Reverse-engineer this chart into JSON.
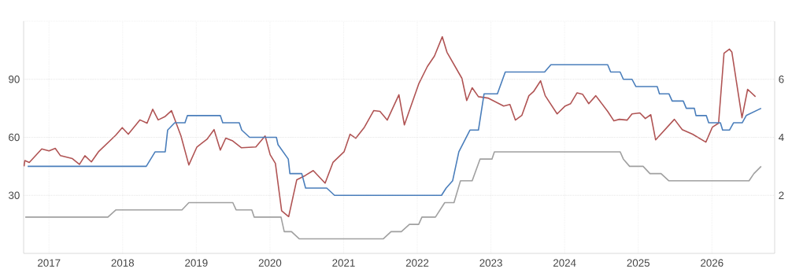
{
  "chart_data": {
    "type": "line",
    "xlim": [
      "2016-08-28",
      "2026-11-08"
    ],
    "xticks": [
      "2017",
      "2018",
      "2019",
      "2020",
      "2021",
      "2022",
      "2023",
      "2024",
      "2025",
      "2026"
    ],
    "ylim": [
      0,
      120
    ],
    "yticks": [
      30,
      60,
      90,
      {
        "value": 120,
        "label": null
      }
    ],
    "y2lim": [
      0,
      8
    ],
    "y2ticks": [
      2,
      4,
      6
    ],
    "grid": true,
    "line_style": "solid",
    "series": [
      {
        "color": "#b05454",
        "x": [
          "2016-08-30",
          "2016-09-03",
          "2016-09-25",
          "2016-11-26",
          "2017-01-01",
          "2017-02-01",
          "2017-02-27",
          "2017-04-27",
          "2017-06-01",
          "2017-06-28",
          "2017-07-30",
          "2017-09-03",
          "2017-11-27",
          "2017-12-30",
          "2018-01-29",
          "2018-03-28",
          "2018-05-02",
          "2018-05-30",
          "2018-06-26",
          "2018-07-31",
          "2018-08-31",
          "2018-10-17",
          "2018-11-25",
          "2019-01-04",
          "2019-02-23",
          "2019-03-30",
          "2019-04-30",
          "2019-05-27",
          "2019-06-28",
          "2019-08-13",
          "2019-10-23",
          "2019-12-08",
          "2020-01-02",
          "2020-01-28",
          "2020-02-28",
          "2020-04-03",
          "2020-05-13",
          "2020-06-25",
          "2020-08-03",
          "2020-10-01",
          "2020-11-09",
          "2021-01-03",
          "2021-02-02",
          "2021-03-02",
          "2021-04-14",
          "2021-05-30",
          "2021-06-30",
          "2021-08-05",
          "2021-10-02",
          "2021-10-29",
          "2022-01-08",
          "2022-02-20",
          "2022-03-27",
          "2022-05-05",
          "2022-05-28",
          "2022-08-10",
          "2022-09-03",
          "2022-09-30",
          "2022-10-31",
          "2022-12-17",
          "2023-03-05",
          "2023-04-05",
          "2023-05-02",
          "2023-06-03",
          "2023-07-08",
          "2023-07-31",
          "2023-09-04",
          "2023-09-27",
          "2023-11-25",
          "2024-01-04",
          "2024-01-31",
          "2024-03-03",
          "2024-03-30",
          "2024-04-30",
          "2024-06-04",
          "2024-08-02",
          "2024-09-02",
          "2024-09-29",
          "2024-11-07",
          "2024-12-01",
          "2025-01-09",
          "2025-02-05",
          "2025-03-04",
          "2025-03-28",
          "2025-06-29",
          "2025-08-07",
          "2025-09-27",
          "2025-12-02",
          "2026-01-03",
          "2026-02-03",
          "2026-03-02",
          "2026-03-29",
          "2026-04-10",
          "2026-05-30",
          "2026-06-27",
          "2026-08-05"
        ],
        "values": [
          45,
          48,
          47,
          54,
          53,
          54.3,
          50.5,
          49,
          46,
          50.5,
          47.3,
          52.5,
          61,
          65,
          61.6,
          69,
          67.3,
          74.5,
          69,
          70.8,
          73.8,
          60.7,
          45.7,
          55,
          59,
          64,
          53.4,
          59.6,
          58.3,
          54.6,
          55,
          60.7,
          51,
          46.5,
          22,
          19,
          38,
          40.3,
          42.8,
          36.3,
          47,
          52.5,
          61.6,
          59.5,
          65.2,
          73.8,
          73.4,
          68.9,
          82,
          66.4,
          87.6,
          96.6,
          102,
          112,
          104,
          90.5,
          79,
          85.6,
          81,
          80.3,
          76.2,
          77,
          68.9,
          71.3,
          81.5,
          83.6,
          89.2,
          81.5,
          72.1,
          76.2,
          77.4,
          83,
          82.3,
          77.4,
          81.5,
          73.4,
          68.5,
          69.3,
          68.9,
          72.1,
          72.6,
          69.7,
          71.7,
          58.7,
          69.3,
          64,
          61.6,
          57.5,
          65.2,
          67.3,
          103.5,
          105.6,
          104,
          70.1,
          84.8,
          81
        ]
      },
      {
        "color": "#4a7ebb",
        "axis": "y2",
        "x": [
          "2016-09-17",
          "2018-04-28",
          "2018-06-11",
          "2018-07-31",
          "2018-08-12",
          "2018-09-16",
          "2018-11-06",
          "2018-11-18",
          "2019-04-30",
          "2019-05-12",
          "2019-08-02",
          "2019-08-14",
          "2019-09-22",
          "2020-02-02",
          "2020-02-10",
          "2020-04-01",
          "2020-04-09",
          "2020-06-07",
          "2020-06-26",
          "2020-10-09",
          "2020-11-17",
          "2022-05-01",
          "2022-05-24",
          "2022-06-25",
          "2022-07-26",
          "2022-09-19",
          "2022-10-31",
          "2022-11-28",
          "2023-02-02",
          "2023-03-13",
          "2023-09-24",
          "2023-10-25",
          "2024-08-02",
          "2024-08-17",
          "2024-10-03",
          "2024-10-19",
          "2024-12-01",
          "2024-12-20",
          "2025-04-05",
          "2025-04-16",
          "2025-06-02",
          "2025-06-18",
          "2025-08-12",
          "2025-08-27",
          "2025-10-06",
          "2025-10-14",
          "2025-12-04",
          "2025-12-16",
          "2026-02-12",
          "2026-02-23",
          "2026-03-29",
          "2026-04-18",
          "2026-05-31",
          "2026-06-20",
          "2026-09-02"
        ],
        "values": [
          3.0,
          3.0,
          3.5,
          3.5,
          4.25,
          4.5,
          4.5,
          4.75,
          4.75,
          4.5,
          4.5,
          4.25,
          4.0,
          4.0,
          3.75,
          3.25,
          2.75,
          2.75,
          2.25,
          2.25,
          2.0,
          2.0,
          2.25,
          2.5,
          3.5,
          4.25,
          4.25,
          5.5,
          5.5,
          6.25,
          6.25,
          6.5,
          6.5,
          6.25,
          6.25,
          6.0,
          6.0,
          5.75,
          5.75,
          5.5,
          5.5,
          5.25,
          5.25,
          5.0,
          5.0,
          4.75,
          4.75,
          4.5,
          4.5,
          4.25,
          4.25,
          4.5,
          4.5,
          4.75,
          5.0
        ]
      },
      {
        "color": "#a0a0a0",
        "axis": "y2",
        "x": [
          "2016-09-05",
          "2017-10-20",
          "2017-11-29",
          "2018-10-22",
          "2018-11-25",
          "2019-07-01",
          "2019-07-17",
          "2019-10-03",
          "2019-10-15",
          "2020-02-25",
          "2020-03-12",
          "2020-04-17",
          "2020-05-26",
          "2021-07-16",
          "2021-08-24",
          "2021-10-14",
          "2021-11-23",
          "2022-01-08",
          "2022-01-24",
          "2022-04-01",
          "2022-05-17",
          "2022-07-02",
          "2022-08-03",
          "2022-09-30",
          "2022-11-08",
          "2023-01-06",
          "2023-01-18",
          "2024-10-03",
          "2024-10-19",
          "2024-11-19",
          "2025-01-25",
          "2025-02-28",
          "2025-04-24",
          "2025-06-02",
          "2026-07-04",
          "2026-07-28",
          "2026-09-02"
        ],
        "values": [
          1.25,
          1.25,
          1.5,
          1.5,
          1.75,
          1.75,
          1.5,
          1.5,
          1.25,
          1.25,
          0.75,
          0.75,
          0.5,
          0.5,
          0.75,
          0.75,
          1.0,
          1.0,
          1.25,
          1.25,
          1.75,
          1.75,
          2.5,
          2.5,
          3.25,
          3.25,
          3.5,
          3.5,
          3.25,
          3.0,
          3.0,
          2.75,
          2.75,
          2.5,
          2.5,
          2.75,
          3.0
        ]
      }
    ]
  }
}
